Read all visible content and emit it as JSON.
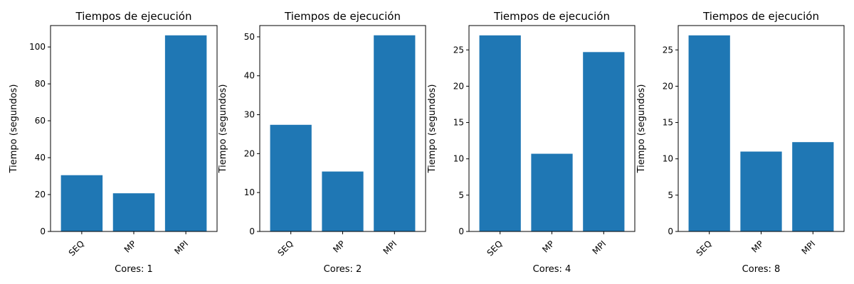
{
  "colors": {
    "bar": "#1f77b4",
    "axis": "#000000",
    "background": "#ffffff"
  },
  "chart_data": [
    {
      "type": "bar",
      "title": "Tiempos de ejecución",
      "xlabel": "Cores: 1",
      "ylabel": "Tiempo (segundos)",
      "categories": [
        "SEQ",
        "MP",
        "MPI"
      ],
      "values": [
        30.5,
        20.7,
        106.3
      ],
      "ylim": [
        0,
        111.6
      ],
      "yticks": [
        0,
        20,
        40,
        60,
        80,
        100
      ],
      "grid": false
    },
    {
      "type": "bar",
      "title": "Tiempos de ejecución",
      "xlabel": "Cores: 2",
      "ylabel": "Tiempo (segundos)",
      "categories": [
        "SEQ",
        "MP",
        "MPI"
      ],
      "values": [
        27.4,
        15.4,
        50.4
      ],
      "ylim": [
        0,
        52.9
      ],
      "yticks": [
        0,
        10,
        20,
        30,
        40,
        50
      ],
      "grid": false
    },
    {
      "type": "bar",
      "title": "Tiempos de ejecución",
      "xlabel": "Cores: 4",
      "ylabel": "Tiempo (segundos)",
      "categories": [
        "SEQ",
        "MP",
        "MPI"
      ],
      "values": [
        27.0,
        10.7,
        24.7
      ],
      "ylim": [
        0,
        28.35
      ],
      "yticks": [
        0,
        5,
        10,
        15,
        20,
        25
      ],
      "grid": false
    },
    {
      "type": "bar",
      "title": "Tiempos de ejecución",
      "xlabel": "Cores: 8",
      "ylabel": "Tiempo (segundos)",
      "categories": [
        "SEQ",
        "MP",
        "MPI"
      ],
      "values": [
        27.0,
        11.0,
        12.3
      ],
      "ylim": [
        0,
        28.35
      ],
      "yticks": [
        0,
        5,
        10,
        15,
        20,
        25
      ],
      "grid": false
    }
  ]
}
